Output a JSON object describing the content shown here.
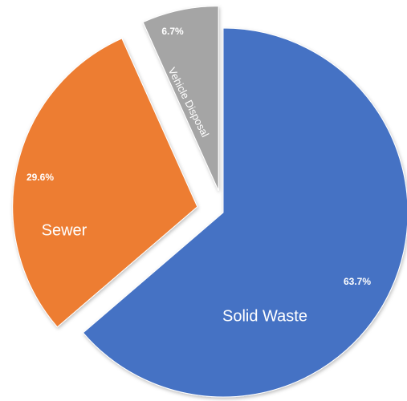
{
  "chart_data": {
    "type": "pie",
    "categories": [
      "Solid Waste",
      "Sewer",
      "Vehicle Disposal"
    ],
    "values": [
      63.7,
      29.6,
      6.7
    ],
    "value_labels": [
      "63.7%",
      "29.6%",
      "6.7%"
    ],
    "colors": [
      "#4472c4",
      "#ed7d31",
      "#a5a5a5"
    ]
  }
}
